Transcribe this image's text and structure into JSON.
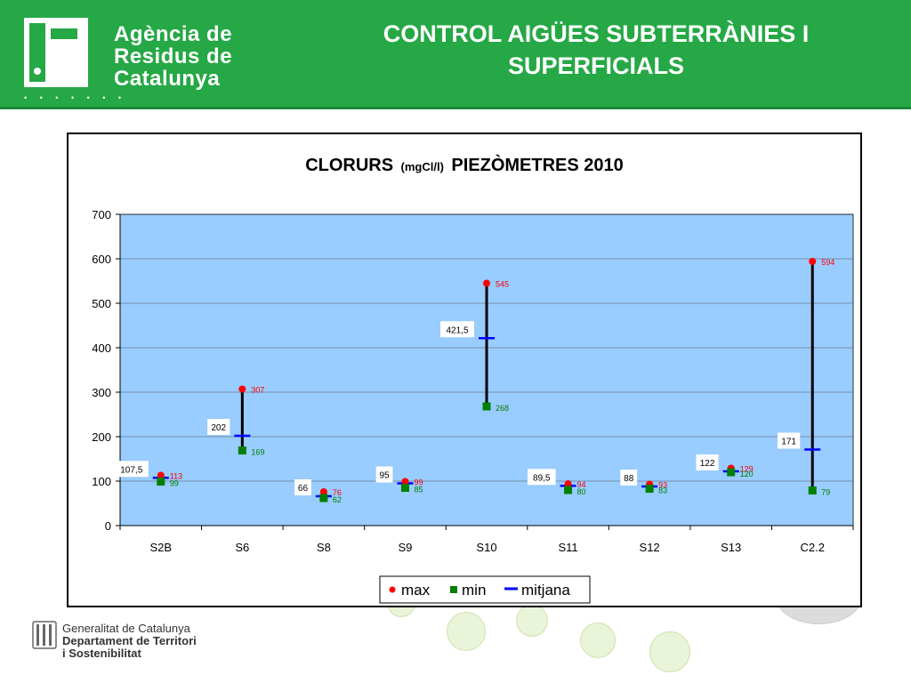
{
  "header": {
    "logo_line1": "Agència de",
    "logo_line2": "Residus de",
    "logo_line3": "Catalunya",
    "logo_dots": "• • • • • • •",
    "title_line1": "CONTROL AIGÜES SUBTERRÀNIES I",
    "title_line2": "SUPERFICIALS"
  },
  "footer": {
    "line1": "Generalitat de Catalunya",
    "line2": "Departament de Territori",
    "line3": "i Sostenibilitat"
  },
  "colors": {
    "header_green": "#25a845",
    "plot_background": "#99ccff",
    "max": "#ff0000",
    "min": "#008000",
    "mitjana": "#0000ff",
    "range_line": "#000000"
  },
  "chart_data": {
    "type": "scatter",
    "title_main": "CLORURS",
    "title_unit": "(mgCl/l)",
    "title_rest": "PIEZÒMETRES 2010",
    "categories": [
      "S2B",
      "S6",
      "S8",
      "S9",
      "S10",
      "S11",
      "S12",
      "S13",
      "C2.2"
    ],
    "series": [
      {
        "name": "max",
        "values": [
          113,
          307,
          76,
          99,
          545,
          94,
          93,
          129,
          594
        ],
        "labels": [
          "113",
          "307",
          "76",
          "99",
          "545",
          "94",
          "93",
          "129",
          "594"
        ]
      },
      {
        "name": "min",
        "values": [
          99,
          169,
          62,
          85,
          268,
          80,
          83,
          120,
          79
        ],
        "labels": [
          "99",
          "169",
          "62",
          "85",
          "268",
          "80",
          "83",
          "120",
          "79"
        ]
      },
      {
        "name": "mitjana",
        "values": [
          107.5,
          202,
          66,
          95,
          421.5,
          89.5,
          88,
          122,
          171
        ],
        "labels": [
          "107,5",
          "202",
          "66",
          "95",
          "421,5",
          "89,5",
          "88",
          "122",
          "171"
        ]
      }
    ],
    "ylim": [
      0,
      700
    ],
    "yticks": [
      0,
      100,
      200,
      300,
      400,
      500,
      600,
      700
    ],
    "ytick_labels": [
      "0",
      "100",
      "200",
      "300",
      "400",
      "500",
      "600",
      "700"
    ],
    "grid": true,
    "legend_position": "bottom"
  }
}
